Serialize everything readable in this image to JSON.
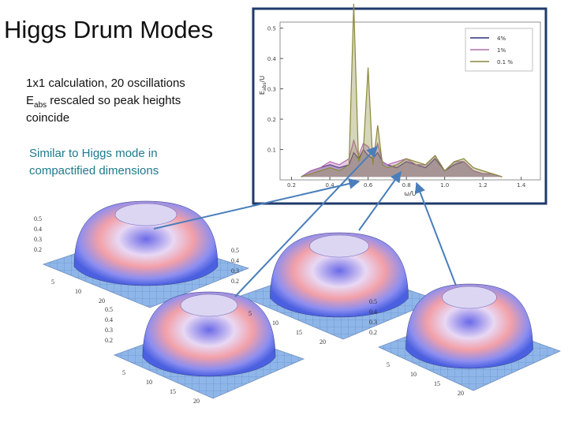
{
  "title": "Higgs Drum Modes",
  "notes": {
    "line1": "1x1  calculation, 20 oscillations",
    "line2_main": "E",
    "line2_sub": "abs",
    "line2_rest": " rescaled so peak heights",
    "line3": "coincide"
  },
  "callout": [
    "Similar to Higgs mode in",
    "compactified dimensions"
  ],
  "chart_data": {
    "type": "line",
    "xlabel": "ω/U",
    "ylabel": {
      "main": "E",
      "sub": "abs",
      "rest": "/U"
    },
    "x": [
      0.25,
      0.3,
      0.35,
      0.4,
      0.45,
      0.5,
      0.525,
      0.55,
      0.575,
      0.6,
      0.625,
      0.65,
      0.675,
      0.7,
      0.75,
      0.8,
      0.85,
      0.9,
      0.95,
      1.0,
      1.05,
      1.1,
      1.15,
      1.2,
      1.25,
      1.3
    ],
    "series": [
      {
        "name": "4%",
        "color": "#2b2f7a",
        "values": [
          0.01,
          0.03,
          0.04,
          0.05,
          0.04,
          0.05,
          0.09,
          0.07,
          0.1,
          0.08,
          0.07,
          0.09,
          0.06,
          0.05,
          0.04,
          0.06,
          0.05,
          0.04,
          0.07,
          0.03,
          0.05,
          0.06,
          0.03,
          0.02,
          0.02,
          0.01
        ]
      },
      {
        "name": "1%",
        "color": "#b56bb0",
        "values": [
          0.01,
          0.03,
          0.04,
          0.06,
          0.05,
          0.07,
          0.13,
          0.08,
          0.12,
          0.11,
          0.08,
          0.12,
          0.06,
          0.05,
          0.06,
          0.07,
          0.05,
          0.05,
          0.08,
          0.03,
          0.06,
          0.06,
          0.03,
          0.02,
          0.02,
          0.01
        ]
      },
      {
        "name": "0.1 %",
        "color": "#8a8a3a",
        "values": [
          0.01,
          0.02,
          0.03,
          0.04,
          0.03,
          0.05,
          0.58,
          0.06,
          0.1,
          0.37,
          0.05,
          0.18,
          0.05,
          0.04,
          0.05,
          0.07,
          0.06,
          0.05,
          0.08,
          0.03,
          0.06,
          0.07,
          0.04,
          0.03,
          0.02,
          0.01
        ]
      }
    ],
    "xlim": [
      0.14,
      1.5
    ],
    "ylim": [
      0,
      0.52
    ],
    "xticks": [
      0.2,
      0.4,
      0.6,
      0.8,
      {
        "value": 1,
        "label": "1.0"
      },
      1.2,
      1.4
    ],
    "yticks": [
      0.1,
      0.2,
      0.3,
      0.4,
      0.5
    ],
    "legend": "top-right"
  },
  "surfaces": [
    {
      "zticks": [
        0.5,
        0.4,
        0.3,
        0.2
      ],
      "ticks": [
        5,
        10,
        20
      ]
    },
    {
      "zticks": [
        0.5,
        0.4,
        0.3,
        0.2
      ],
      "ticks": [
        5,
        10,
        15,
        20
      ]
    },
    {
      "zticks": [
        0.5,
        0.4,
        0.3,
        0.2
      ],
      "ticks": [
        5,
        10,
        15,
        20
      ]
    },
    {
      "zticks": [
        0.5,
        0.4,
        0.3,
        0.2
      ],
      "ticks": [
        5,
        10,
        15,
        20
      ]
    }
  ]
}
